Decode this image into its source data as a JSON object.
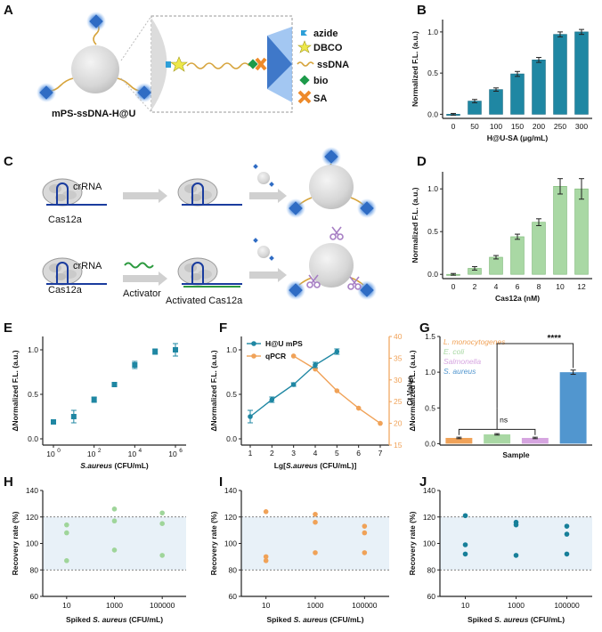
{
  "panels": {
    "A": {
      "letter": "A",
      "particle_label": "mPS-ssDNA-H@U",
      "legend": [
        {
          "name": "azide",
          "icon": "azide-flag"
        },
        {
          "name": "DBCO",
          "icon": "star"
        },
        {
          "name": "ssDNA",
          "icon": "wave"
        },
        {
          "name": "bio",
          "icon": "diamond"
        },
        {
          "name": "SA",
          "icon": "cross"
        }
      ]
    },
    "C": {
      "letter": "C",
      "top_enzyme": "Cas12a",
      "top_rna": "crRNA",
      "bottom_enzyme": "Cas12a",
      "bottom_rna": "crRNA",
      "activator": "Activator",
      "activated": "Activated Cas12a"
    },
    "B": {
      "letter": "B"
    },
    "D": {
      "letter": "D"
    },
    "E": {
      "letter": "E"
    },
    "F": {
      "letter": "F"
    },
    "G": {
      "letter": "G"
    },
    "H": {
      "letter": "H"
    },
    "I": {
      "letter": "I"
    },
    "J": {
      "letter": "J"
    }
  },
  "colors": {
    "teal": "#1f87a3",
    "green": "#a9d8a4",
    "orange": "#f0a258",
    "purple": "#d6a5e0",
    "blue": "#5196cf",
    "band": "#e8f1f8"
  },
  "chart_data": [
    {
      "id": "B",
      "type": "bar",
      "categories": [
        "0",
        "50",
        "100",
        "150",
        "200",
        "250",
        "300"
      ],
      "values": [
        0.0,
        0.16,
        0.3,
        0.49,
        0.66,
        0.97,
        1.0
      ],
      "errors": [
        0.01,
        0.02,
        0.02,
        0.03,
        0.03,
        0.03,
        0.03
      ],
      "xlabel": "H@U-SA (μg/mL)",
      "ylabel": "Normalized F.L. (a.u.)",
      "ylim": [
        -0.05,
        1.15
      ],
      "yticks": [
        "0.0",
        "0.5",
        "1.0"
      ]
    },
    {
      "id": "D",
      "type": "bar",
      "categories": [
        "0",
        "2",
        "4",
        "6",
        "8",
        "10",
        "12"
      ],
      "values": [
        0.0,
        0.07,
        0.2,
        0.44,
        0.61,
        1.03,
        1.0
      ],
      "errors": [
        0.01,
        0.02,
        0.02,
        0.03,
        0.04,
        0.09,
        0.12
      ],
      "xlabel": "Cas12a (nM)",
      "ylabel": "Normalized F.L. (a.u.)",
      "ylim": [
        -0.05,
        1.2
      ],
      "yticks": [
        "0.0",
        "0.5",
        "1.0"
      ]
    },
    {
      "id": "E",
      "type": "scatter",
      "x": [
        0,
        1,
        2,
        3,
        4,
        5,
        6
      ],
      "y": [
        0.19,
        0.25,
        0.44,
        0.61,
        0.83,
        0.98,
        1.0
      ],
      "errors": [
        0.02,
        0.07,
        0.03,
        0.02,
        0.04,
        0.03,
        0.07
      ],
      "xticks": [
        "10",
        "10",
        "10",
        "10"
      ],
      "xtick_sup": [
        "0",
        "2",
        "4",
        "6"
      ],
      "xtick_pos": [
        0,
        2,
        4,
        6
      ],
      "xlabel_italic": "S.aureus",
      "xlabel_rest": " (CFU/mL)",
      "ylabel": "ΔNormalized F.L. (a.u.)",
      "ylim": [
        -0.07,
        1.15
      ],
      "yticks": [
        "0.0",
        "0.5",
        "1.0"
      ]
    },
    {
      "id": "F",
      "type": "line",
      "x": [
        1,
        2,
        3,
        4,
        5,
        6,
        7
      ],
      "series": [
        {
          "name": "H@U mPS",
          "x": [
            1,
            2,
            3,
            4,
            5
          ],
          "y": [
            0.25,
            0.44,
            0.61,
            0.83,
            0.98
          ],
          "errors": [
            0.07,
            0.03,
            0.02,
            0.03,
            0.03
          ]
        },
        {
          "name": "qPCR",
          "x": [
            3,
            4,
            5,
            6,
            7
          ],
          "y": [
            35.5,
            32.5,
            27.5,
            23.5,
            20.0
          ]
        }
      ],
      "xlabel_pre": "Lg[",
      "xlabel_italic": "S.aureus",
      "xlabel_rest": " (CFU/mL)]",
      "ylabel": "ΔNormalized F.L. (a.u.)",
      "ylabel_right": "Ct Value",
      "ylim": [
        -0.07,
        1.15
      ],
      "ylim_right": [
        15,
        40
      ],
      "yticks": [
        "0.0",
        "0.5",
        "1.0"
      ],
      "yticks_right": [
        "15",
        "20",
        "25",
        "30",
        "35",
        "40"
      ]
    },
    {
      "id": "G",
      "type": "bar",
      "categories": [
        "L. monocytogenes",
        "E. coli",
        "Salmonella",
        "S. aureus"
      ],
      "values": [
        0.08,
        0.13,
        0.08,
        1.0
      ],
      "errors": [
        0.01,
        0.01,
        0.01,
        0.03
      ],
      "xlabel": "Sample",
      "ylabel": "ΔNormalized F.L. (a.u.)",
      "ylim": [
        -0.02,
        1.5
      ],
      "yticks": [
        "0.0",
        "0.5",
        "1.0",
        "1.5"
      ],
      "annotations": [
        "ns",
        "****"
      ]
    },
    {
      "id": "H",
      "type": "scatter",
      "categories": [
        "10",
        "1000",
        "100000"
      ],
      "points": [
        [
          114,
          108,
          87
        ],
        [
          126,
          117,
          95
        ],
        [
          123,
          115,
          91
        ]
      ],
      "xlabel_pre": "Spiked ",
      "xlabel_italic": "S. aureus",
      "xlabel_rest": " (CFU/mL)",
      "ylabel": "Recovery rate (%)",
      "ylim": [
        60,
        140
      ],
      "band": [
        80,
        120
      ],
      "yticks": [
        "60",
        "80",
        "100",
        "120",
        "140"
      ]
    },
    {
      "id": "I",
      "type": "scatter",
      "categories": [
        "10",
        "1000",
        "100000"
      ],
      "points": [
        [
          124,
          90,
          87
        ],
        [
          122,
          116,
          93
        ],
        [
          113,
          108,
          93
        ]
      ],
      "xlabel_pre": "Spiked ",
      "xlabel_italic": "S. aureus",
      "xlabel_rest": " (CFU/mL)",
      "ylabel": "Recovery rate (%)",
      "ylim": [
        60,
        140
      ],
      "band": [
        80,
        120
      ],
      "yticks": [
        "60",
        "80",
        "100",
        "120",
        "140"
      ]
    },
    {
      "id": "J",
      "type": "scatter",
      "categories": [
        "10",
        "1000",
        "100000"
      ],
      "points": [
        [
          121,
          99,
          92
        ],
        [
          116,
          114,
          91
        ],
        [
          113,
          107,
          92
        ]
      ],
      "xlabel_pre": "Spiked ",
      "xlabel_italic": "S. aureus",
      "xlabel_rest": " (CFU/mL)",
      "ylabel": "Recovery rate (%)",
      "ylim": [
        60,
        140
      ],
      "band": [
        80,
        120
      ],
      "yticks": [
        "60",
        "80",
        "100",
        "120",
        "140"
      ]
    }
  ]
}
